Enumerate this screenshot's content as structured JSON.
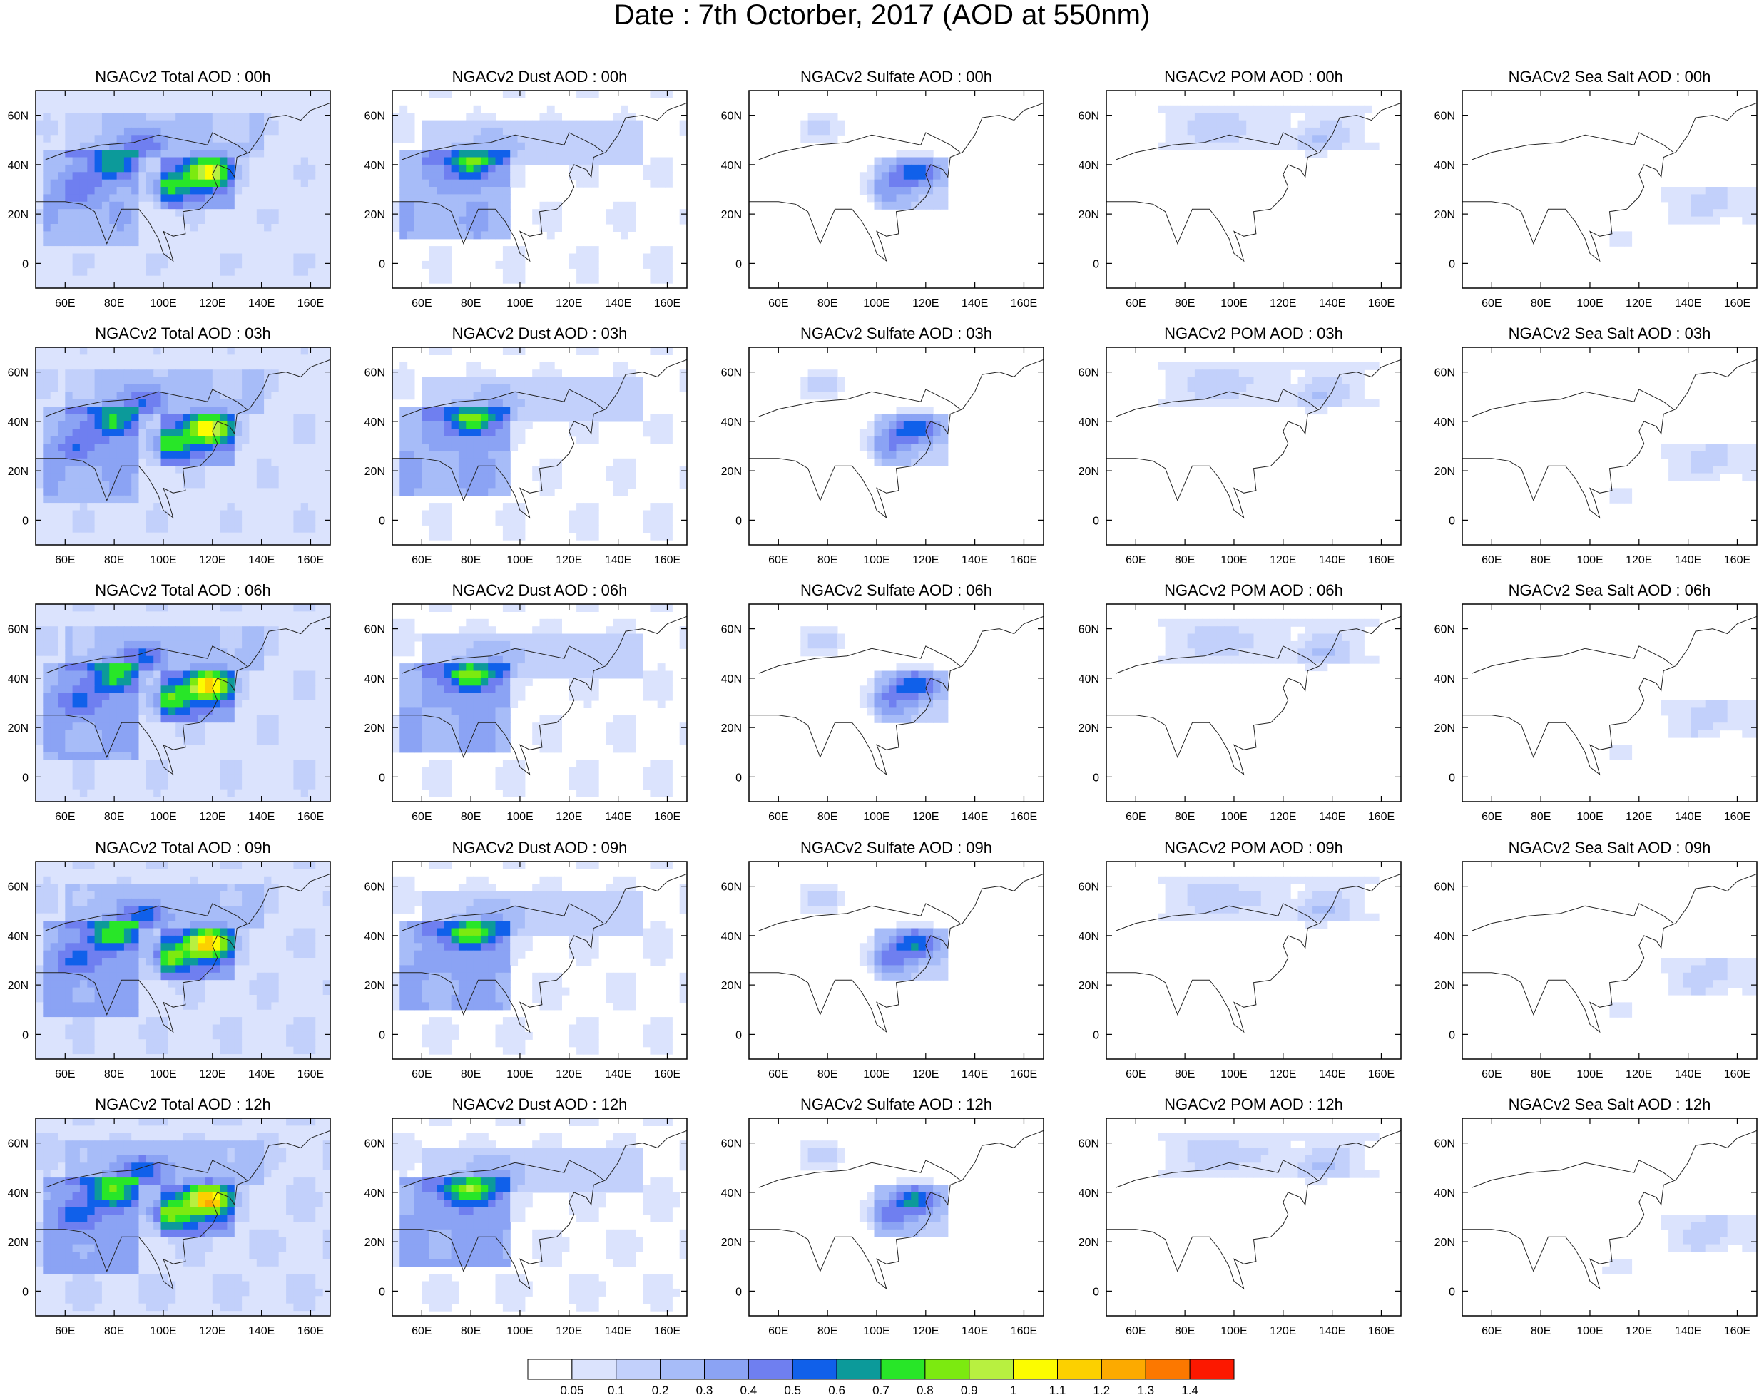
{
  "title": "Date : 7th Octorber, 2017 (AOD at 550nm)",
  "chart_data": {
    "type": "heatmap",
    "layout": {
      "rows": 5,
      "cols": 5
    },
    "x_ticks": [
      "60E",
      "80E",
      "100E",
      "120E",
      "140E",
      "160E"
    ],
    "x_tick_values": [
      60,
      80,
      100,
      120,
      140,
      160
    ],
    "y_ticks": [
      "60N",
      "40N",
      "20N",
      "0"
    ],
    "y_tick_values": [
      60,
      40,
      20,
      0
    ],
    "xlim": [
      48,
      168
    ],
    "ylim": [
      -10,
      70
    ],
    "panel_titles": [
      [
        "NGACv2 Total AOD : 00h",
        "NGACv2 Dust AOD : 00h",
        "NGACv2 Sulfate AOD : 00h",
        "NGACv2 POM AOD : 00h",
        "NGACv2 Sea Salt AOD : 00h"
      ],
      [
        "NGACv2 Total AOD : 03h",
        "NGACv2 Dust AOD : 03h",
        "NGACv2 Sulfate AOD : 03h",
        "NGACv2 POM AOD : 03h",
        "NGACv2 Sea Salt AOD : 03h"
      ],
      [
        "NGACv2 Total AOD : 06h",
        "NGACv2 Dust AOD : 06h",
        "NGACv2 Sulfate AOD : 06h",
        "NGACv2 POM AOD : 06h",
        "NGACv2 Sea Salt AOD : 06h"
      ],
      [
        "NGACv2 Total AOD : 09h",
        "NGACv2 Dust AOD : 09h",
        "NGACv2 Sulfate AOD : 09h",
        "NGACv2 POM AOD : 09h",
        "NGACv2 Sea Salt  AOD : 09h"
      ],
      [
        "NGACv2 Total AOD  : 12h",
        "NGACv2 Dust AOD : 12h",
        "NGACv2 Sulfate AOD : 12h",
        "NGACv2 POM  AOD : 12h",
        "NGACv2 Sea Salt  AOD : 12h"
      ]
    ],
    "colorbar": {
      "labels": [
        "0.05",
        "0.1",
        "0.2",
        "0.3",
        "0.4",
        "0.5",
        "0.6",
        "0.7",
        "0.8",
        "0.9",
        "1",
        "1.1",
        "1.2",
        "1.3",
        "1.4"
      ],
      "colors": [
        "#ffffff",
        "#dbe3fd",
        "#c2d0fb",
        "#a7bcf8",
        "#8ba3f4",
        "#6f7ff0",
        "#1060ea",
        "#0c9a9a",
        "#28e628",
        "#7cea10",
        "#b8f040",
        "#fcfc00",
        "#fcd000",
        "#fcaa00",
        "#fc7800",
        "#fc1800"
      ]
    },
    "fields": [
      {
        "name": "Total",
        "hotspots": [
          [
            80,
            40,
            0.45
          ],
          [
            118,
            37,
            0.75
          ],
          [
            103,
            31,
            0.4
          ],
          [
            93,
            49,
            0.3
          ],
          [
            65,
            30,
            0.2
          ]
        ],
        "bands": [
          [
            50,
            90,
            8,
            45,
            0.2
          ],
          [
            60,
            140,
            42,
            60,
            0.12
          ],
          [
            100,
            130,
            22,
            42,
            0.25
          ]
        ],
        "bg": 0.08
      },
      {
        "name": "Dust",
        "hotspots": [
          [
            80,
            40,
            0.5
          ],
          [
            93,
            49,
            0.15
          ]
        ],
        "bands": [
          [
            50,
            95,
            10,
            45,
            0.25
          ],
          [
            60,
            150,
            40,
            58,
            0.1
          ]
        ],
        "bg": 0.04
      },
      {
        "name": "Sulfate",
        "hotspots": [
          [
            115,
            37,
            0.45
          ],
          [
            105,
            30,
            0.22
          ],
          [
            75,
            55,
            0.15
          ]
        ],
        "bands": [
          [
            98,
            130,
            22,
            42,
            0.15
          ]
        ],
        "bg": 0.0
      },
      {
        "name": "POM",
        "hotspots": [
          [
            95,
            55,
            0.15
          ],
          [
            135,
            50,
            0.15
          ]
        ],
        "bands": [
          [
            70,
            160,
            45,
            65,
            0.06
          ]
        ],
        "bg": 0.0
      },
      {
        "name": "Sea Salt",
        "hotspots": [
          [
            150,
            25,
            0.08
          ],
          [
            112,
            8,
            0.07
          ]
        ],
        "bands": [
          [
            130,
            168,
            15,
            30,
            0.06
          ]
        ],
        "bg": 0.0
      }
    ]
  }
}
